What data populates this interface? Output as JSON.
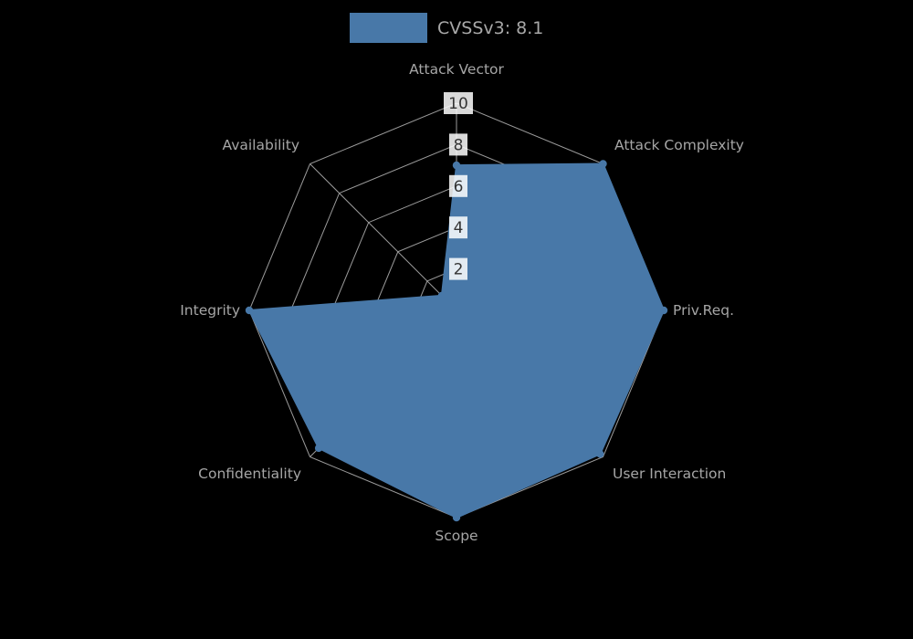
{
  "chart_data": {
    "type": "radar",
    "legend": {
      "label": "CVSSv3: 8.1",
      "position": "top-center"
    },
    "categories": [
      "Attack Vector",
      "Attack Complexity",
      "Priv.Req.",
      "User Interaction",
      "Scope",
      "Confidentiality",
      "Integrity",
      "Availability"
    ],
    "series": [
      {
        "name": "CVSSv3: 8.1",
        "values": [
          7,
          10,
          10,
          9.8,
          10,
          9.4,
          10,
          1
        ]
      }
    ],
    "rlim": [
      0,
      10
    ],
    "ticks": [
      2,
      4,
      6,
      8,
      10
    ],
    "grid": true,
    "colors": {
      "series": "#4878a8",
      "grid": "#9b9b9b",
      "axis_labels": "#a6a6a6",
      "tick_text": "#333333",
      "tick_box": "rgba(255,255,255,0.85)",
      "legend_text": "#a8a8a8",
      "background": "#000000"
    }
  }
}
